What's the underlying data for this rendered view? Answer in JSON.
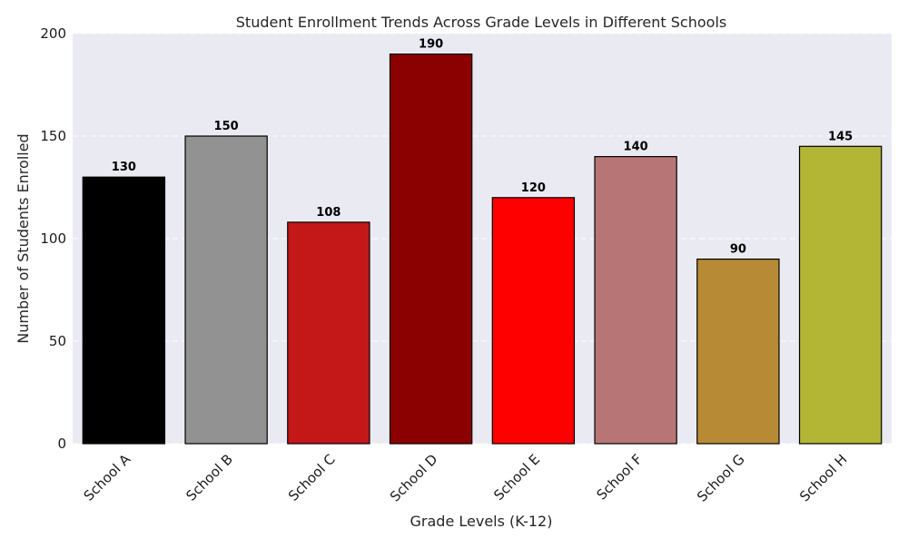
{
  "chart_data": {
    "type": "bar",
    "title": "Student Enrollment Trends Across Grade Levels in Different Schools",
    "xlabel": "Grade Levels (K-12)",
    "ylabel": "Number of Students Enrolled",
    "categories": [
      "School A",
      "School B",
      "School C",
      "School D",
      "School E",
      "School F",
      "School G",
      "School H"
    ],
    "values": [
      130,
      150,
      108,
      190,
      120,
      140,
      90,
      145
    ],
    "data_labels": [
      "130",
      "150",
      "108",
      "190",
      "120",
      "140",
      "90",
      "145"
    ],
    "colors": [
      "#000000",
      "#929292",
      "#c41718",
      "#8b0000",
      "#ff0000",
      "#b87575",
      "#b78a35",
      "#b3b535"
    ],
    "ylim": [
      0,
      200
    ],
    "yticks": [
      0,
      50,
      100,
      150,
      200
    ],
    "ytick_labels": [
      "0",
      "50",
      "100",
      "150",
      "200"
    ],
    "grid": true,
    "grid_axis": "y",
    "background_color": "#eaeaf2",
    "edge_color": "#000000"
  }
}
